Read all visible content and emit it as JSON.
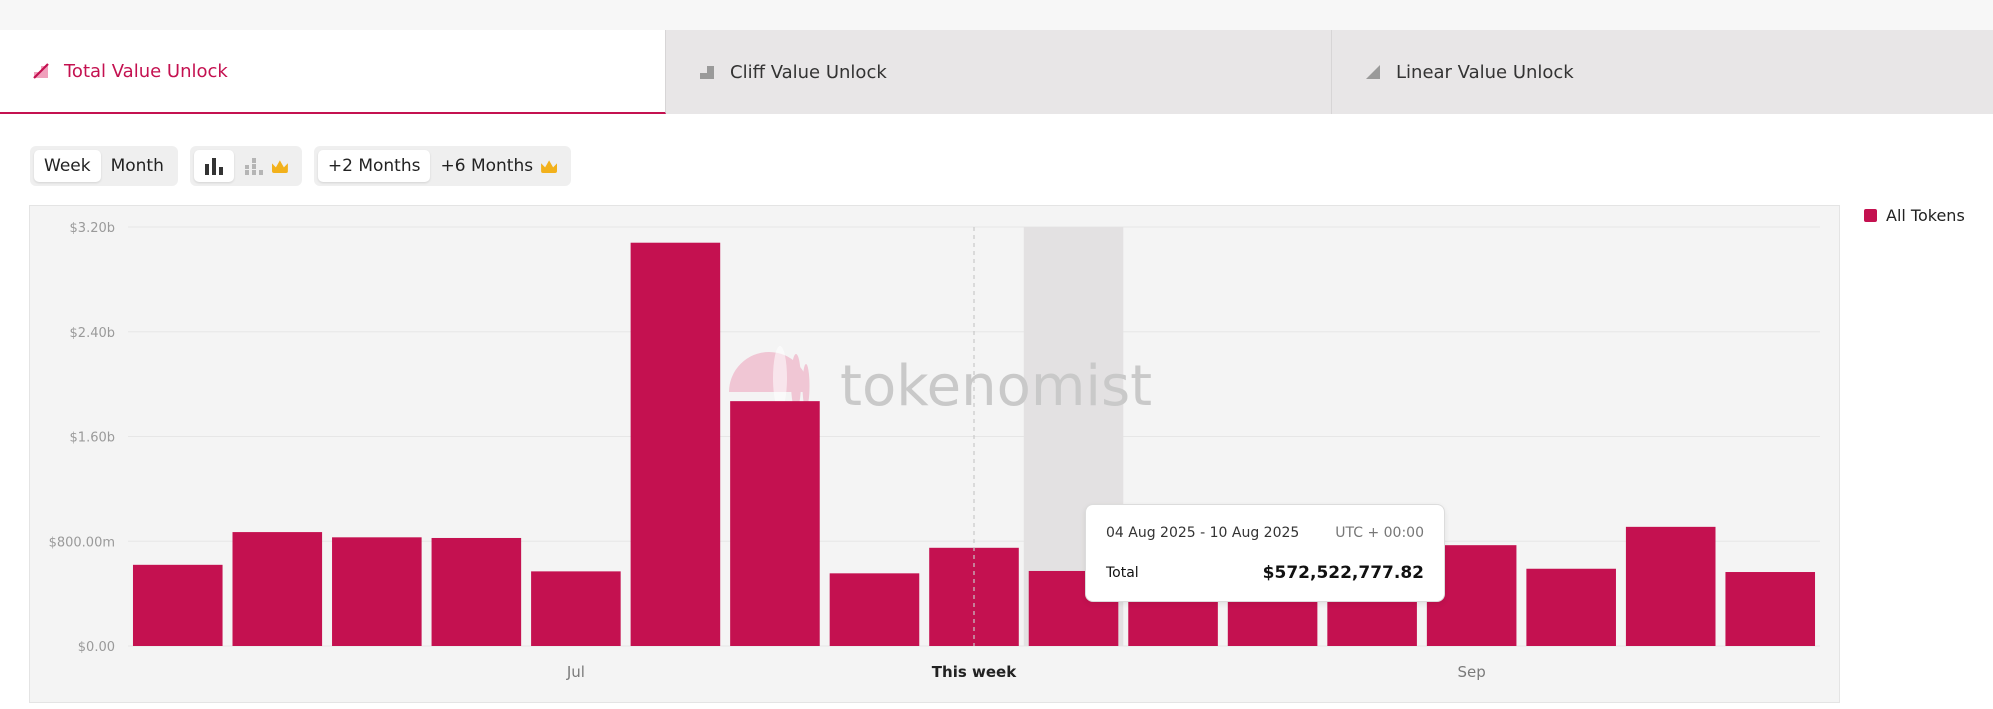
{
  "tabs": [
    {
      "label": "Total Value Unlock",
      "icon": "total-unlock-icon"
    },
    {
      "label": "Cliff Value Unlock",
      "icon": "cliff-step-icon"
    },
    {
      "label": "Linear Value Unlock",
      "icon": "linear-ramp-icon"
    }
  ],
  "controls": {
    "week_label": "Week",
    "month_label": "Month",
    "bar_chart_icon": "bar-chart-icon",
    "stacked_chart_icon": "stacked-bar-chart-icon",
    "plus2_label": "+2 Months",
    "plus6_label": "+6 Months"
  },
  "watermark": "tokenomist",
  "legend": {
    "label": "All Tokens",
    "color": "#c41150"
  },
  "tooltip": {
    "date_range": "04 Aug 2025 - 10 Aug 2025",
    "timezone": "UTC + 00:00",
    "total_label": "Total",
    "total_value": "$572,522,777.82"
  },
  "colors": {
    "accent": "#c41150",
    "bar": "#c41150",
    "highlight": "#e3e1e2"
  },
  "chart_data": {
    "type": "bar",
    "series": [
      {
        "name": "All Tokens",
        "values": [
          620,
          870,
          830,
          825,
          570,
          3080,
          1870,
          555,
          750,
          573,
          560,
          560,
          560,
          770,
          590,
          910,
          565
        ]
      }
    ],
    "highlight_index": 9,
    "current_week_index": 8,
    "ylim": [
      0,
      3200
    ],
    "yticks": [
      {
        "value": 0,
        "label": "$0.00"
      },
      {
        "value": 800,
        "label": "$800.00m"
      },
      {
        "value": 1600,
        "label": "$1.60b"
      },
      {
        "value": 2400,
        "label": "$2.40b"
      },
      {
        "value": 3200,
        "label": "$3.20b"
      }
    ],
    "xticks": [
      {
        "index": 4.5,
        "label": "Jul"
      },
      {
        "index": 8.5,
        "label": "This week"
      },
      {
        "index": 13.5,
        "label": "Sep"
      }
    ],
    "units": "millions USD"
  }
}
